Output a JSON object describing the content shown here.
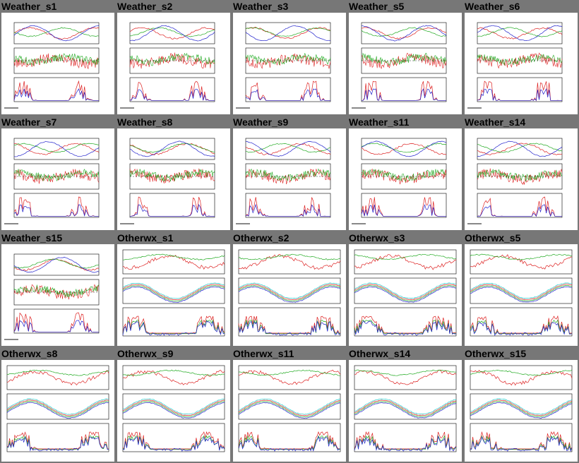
{
  "page": {
    "background": "#777777"
  },
  "thumbnails": [
    {
      "title": "Weather_s1",
      "kind": "weather"
    },
    {
      "title": "Weather_s2",
      "kind": "weather"
    },
    {
      "title": "Weather_s3",
      "kind": "weather"
    },
    {
      "title": "Weather_s5",
      "kind": "weather"
    },
    {
      "title": "Weather_s6",
      "kind": "weather"
    },
    {
      "title": "Weather_s7",
      "kind": "weather"
    },
    {
      "title": "Weather_s8",
      "kind": "weather"
    },
    {
      "title": "Weather_s9",
      "kind": "weather"
    },
    {
      "title": "Weather_s11",
      "kind": "weather"
    },
    {
      "title": "Weather_s14",
      "kind": "weather"
    },
    {
      "title": "Weather_s15",
      "kind": "weather"
    },
    {
      "title": "Otherwx_s1",
      "kind": "otherwx"
    },
    {
      "title": "Otherwx_s2",
      "kind": "otherwx"
    },
    {
      "title": "Otherwx_s3",
      "kind": "otherwx"
    },
    {
      "title": "Otherwx_s5",
      "kind": "otherwx"
    },
    {
      "title": "Otherwx_s8",
      "kind": "otherwx"
    },
    {
      "title": "Otherwx_s9",
      "kind": "otherwx"
    },
    {
      "title": "Otherwx_s11",
      "kind": "otherwx"
    },
    {
      "title": "Otherwx_s14",
      "kind": "otherwx"
    },
    {
      "title": "Otherwx_s15",
      "kind": "otherwx"
    }
  ],
  "colors": {
    "red": "#dd2222",
    "green": "#22aa22",
    "blue": "#2222cc",
    "cyan": "#22cccc",
    "magenta": "#dd22dd",
    "grey": "#888888"
  }
}
